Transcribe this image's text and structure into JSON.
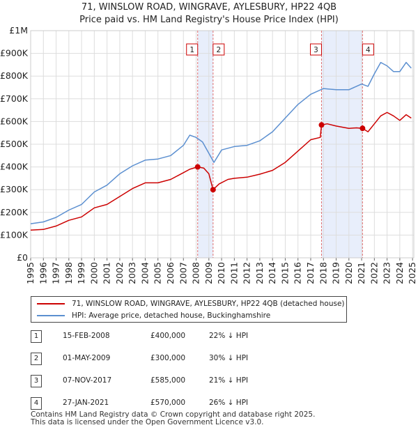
{
  "title_line1": "71, WINSLOW ROAD, WINGRAVE, AYLESBURY, HP22 4QB",
  "title_line2": "Price paid vs. HM Land Registry's House Price Index (HPI)",
  "chart_data": {
    "type": "line",
    "y_ticks": [
      {
        "value": 0,
        "label": "£0"
      },
      {
        "value": 100000,
        "label": "£100K"
      },
      {
        "value": 200000,
        "label": "£200K"
      },
      {
        "value": 300000,
        "label": "£300K"
      },
      {
        "value": 400000,
        "label": "£400K"
      },
      {
        "value": 500000,
        "label": "£500K"
      },
      {
        "value": 600000,
        "label": "£600K"
      },
      {
        "value": 700000,
        "label": "£700K"
      },
      {
        "value": 800000,
        "label": "£800K"
      },
      {
        "value": 900000,
        "label": "£900K"
      },
      {
        "value": 1000000,
        "label": "£1M"
      }
    ],
    "x_ticks": [
      "1995",
      "1996",
      "1997",
      "1998",
      "1999",
      "2000",
      "2001",
      "2002",
      "2003",
      "2004",
      "2005",
      "2006",
      "2007",
      "2008",
      "2009",
      "2010",
      "2011",
      "2012",
      "2013",
      "2014",
      "2015",
      "2016",
      "2017",
      "2018",
      "2019",
      "2020",
      "2021",
      "2022",
      "2023",
      "2024",
      "2025"
    ],
    "xlim": [
      1995,
      2025.1
    ],
    "ylim": [
      0,
      1000000
    ],
    "grid": true,
    "series": [
      {
        "name": "71, WINSLOW ROAD, WINGRAVE, AYLESBURY, HP22 4QB (detached house)",
        "color": "#cc0000",
        "points": [
          [
            1995,
            122000
          ],
          [
            1996,
            125000
          ],
          [
            1997,
            140000
          ],
          [
            1998,
            165000
          ],
          [
            1999,
            180000
          ],
          [
            2000,
            220000
          ],
          [
            2001,
            235000
          ],
          [
            2002,
            270000
          ],
          [
            2003,
            305000
          ],
          [
            2004,
            330000
          ],
          [
            2005,
            330000
          ],
          [
            2006,
            345000
          ],
          [
            2007,
            375000
          ],
          [
            2007.5,
            390000
          ],
          [
            2008.12,
            400000
          ],
          [
            2008.6,
            395000
          ],
          [
            2009.0,
            370000
          ],
          [
            2009.33,
            300000
          ],
          [
            2009.8,
            325000
          ],
          [
            2010.5,
            345000
          ],
          [
            2011,
            350000
          ],
          [
            2012,
            355000
          ],
          [
            2013,
            368000
          ],
          [
            2014,
            385000
          ],
          [
            2015,
            420000
          ],
          [
            2016,
            470000
          ],
          [
            2017,
            520000
          ],
          [
            2017.75,
            530000
          ],
          [
            2017.85,
            585000
          ],
          [
            2018.3,
            590000
          ],
          [
            2019,
            580000
          ],
          [
            2020,
            570000
          ],
          [
            2020.6,
            572000
          ],
          [
            2021.07,
            570000
          ],
          [
            2021.5,
            555000
          ],
          [
            2022,
            590000
          ],
          [
            2022.5,
            625000
          ],
          [
            2023,
            640000
          ],
          [
            2023.5,
            625000
          ],
          [
            2024,
            605000
          ],
          [
            2024.5,
            630000
          ],
          [
            2024.9,
            615000
          ]
        ]
      },
      {
        "name": "HPI: Average price, detached house, Buckinghamshire",
        "color": "#5b8fd0",
        "points": [
          [
            1995,
            150000
          ],
          [
            1996,
            158000
          ],
          [
            1997,
            178000
          ],
          [
            1998,
            210000
          ],
          [
            1999,
            235000
          ],
          [
            2000,
            290000
          ],
          [
            2001,
            320000
          ],
          [
            2002,
            370000
          ],
          [
            2003,
            405000
          ],
          [
            2004,
            430000
          ],
          [
            2005,
            435000
          ],
          [
            2006,
            450000
          ],
          [
            2007,
            495000
          ],
          [
            2007.5,
            540000
          ],
          [
            2008.0,
            530000
          ],
          [
            2008.5,
            510000
          ],
          [
            2009.0,
            460000
          ],
          [
            2009.4,
            420000
          ],
          [
            2010,
            475000
          ],
          [
            2011,
            490000
          ],
          [
            2012,
            495000
          ],
          [
            2013,
            515000
          ],
          [
            2014,
            555000
          ],
          [
            2015,
            615000
          ],
          [
            2016,
            675000
          ],
          [
            2017,
            720000
          ],
          [
            2018,
            745000
          ],
          [
            2019,
            740000
          ],
          [
            2020,
            740000
          ],
          [
            2021,
            765000
          ],
          [
            2021.5,
            755000
          ],
          [
            2022,
            810000
          ],
          [
            2022.5,
            860000
          ],
          [
            2023,
            845000
          ],
          [
            2023.5,
            820000
          ],
          [
            2024,
            820000
          ],
          [
            2024.5,
            860000
          ],
          [
            2024.9,
            835000
          ]
        ]
      }
    ],
    "sales": [
      {
        "id": "1",
        "x": 2008.12,
        "price": 400000
      },
      {
        "id": "2",
        "x": 2009.33,
        "price": 300000
      },
      {
        "id": "3",
        "x": 2017.85,
        "price": 585000
      },
      {
        "id": "4",
        "x": 2021.07,
        "price": 570000
      }
    ],
    "shaded_ranges": [
      [
        2008.12,
        2009.33
      ],
      [
        2017.85,
        2021.07
      ]
    ]
  },
  "legend": {
    "property_label": "71, WINSLOW ROAD, WINGRAVE, AYLESBURY, HP22 4QB (detached house)",
    "hpi_label": "HPI: Average price, detached house, Buckinghamshire"
  },
  "sales_table": [
    {
      "num": "1",
      "date": "15-FEB-2008",
      "price": "£400,000",
      "hpi": "22% ↓ HPI"
    },
    {
      "num": "2",
      "date": "01-MAY-2009",
      "price": "£300,000",
      "hpi": "30% ↓ HPI"
    },
    {
      "num": "3",
      "date": "07-NOV-2017",
      "price": "£585,000",
      "hpi": "21% ↓ HPI"
    },
    {
      "num": "4",
      "date": "27-JAN-2021",
      "price": "£570,000",
      "hpi": "26% ↓ HPI"
    }
  ],
  "footer_line1": "Contains HM Land Registry data © Crown copyright and database right 2025.",
  "footer_line2": "This data is licensed under the Open Government Licence v3.0."
}
